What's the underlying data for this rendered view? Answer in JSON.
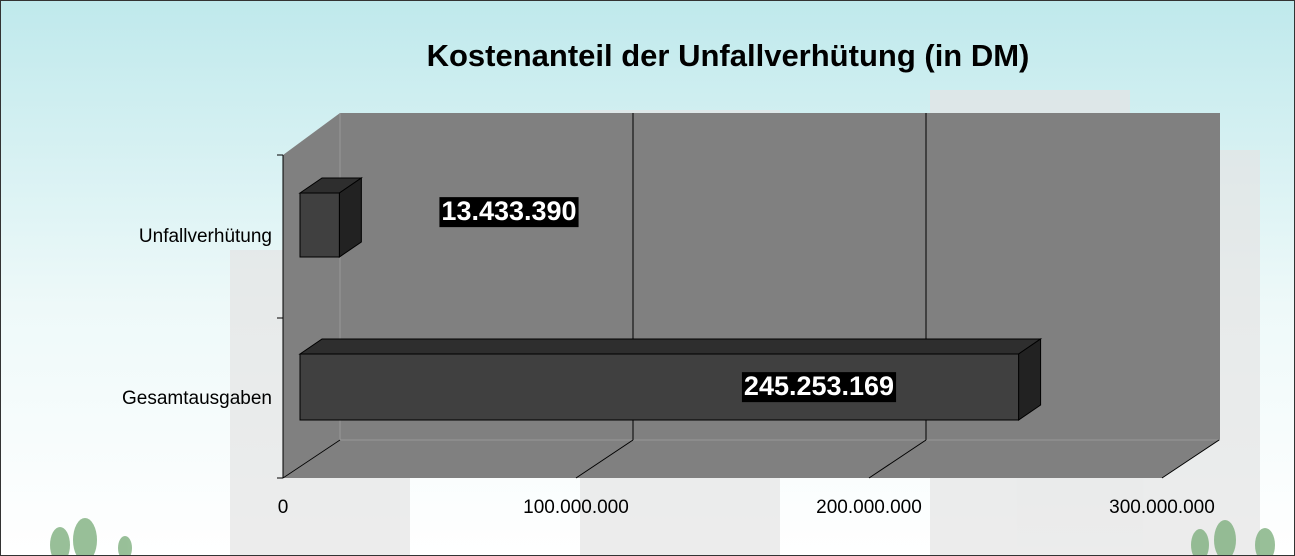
{
  "chart_data": {
    "type": "bar",
    "orientation": "horizontal",
    "three_d": true,
    "title": "Kostenanteil der Unfallverhütung (in DM)",
    "categories": [
      "Unfallverhütung",
      "Gesamtausgaben"
    ],
    "values": [
      13433390,
      245253169
    ],
    "value_labels": [
      "13.433.390",
      "245.253.169"
    ],
    "color": "#404040",
    "wall_color": "#808080",
    "xlim": [
      0,
      300000000
    ],
    "xticks": [
      0,
      {
        "value": 100000000,
        "label": "100.000.000"
      },
      {
        "value": 200000000,
        "label": "200.000.000"
      },
      {
        "value": 300000000,
        "label": "300.000.000"
      }
    ],
    "grid": true
  }
}
